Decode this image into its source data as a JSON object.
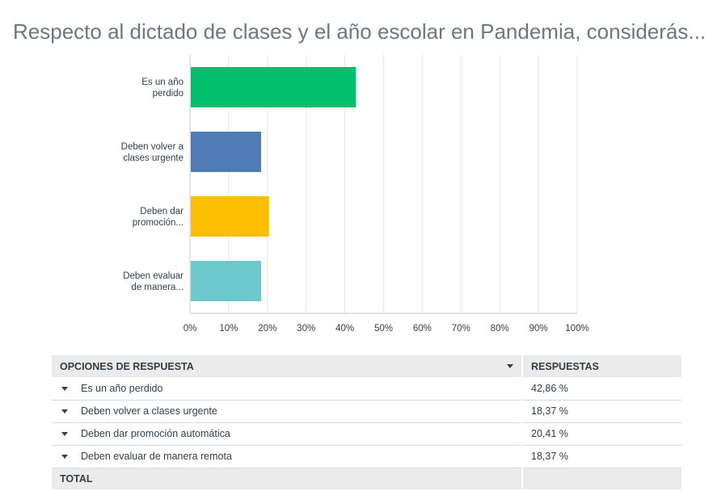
{
  "title": "Respecto al dictado de clases y el año escolar en Pandemia, considerás...",
  "chart_data": {
    "type": "bar",
    "orientation": "horizontal",
    "categories": [
      [
        "Es un año",
        "perdido"
      ],
      [
        "Deben volver a",
        "clases urgente"
      ],
      [
        "Deben dar",
        "promoción..."
      ],
      [
        "Deben evaluar",
        "de manera..."
      ]
    ],
    "values": [
      42.86,
      18.37,
      20.41,
      18.37
    ],
    "colors": [
      "#00bf6f",
      "#507cb6",
      "#f9be00",
      "#6bc8cd"
    ],
    "xlim": [
      0,
      100
    ],
    "xticks": [
      "0%",
      "10%",
      "20%",
      "30%",
      "40%",
      "50%",
      "60%",
      "70%",
      "80%",
      "90%",
      "100%"
    ],
    "grid": true,
    "xlabel": "",
    "ylabel": ""
  },
  "table": {
    "headers": {
      "options": "OPCIONES DE RESPUESTA",
      "responses": "RESPUESTAS"
    },
    "rows": [
      {
        "label": "Es un año perdido",
        "value": "42,86 %"
      },
      {
        "label": "Deben volver a clases urgente",
        "value": "18,37 %"
      },
      {
        "label": "Deben dar promoción automática",
        "value": "20,41 %"
      },
      {
        "label": "Deben evaluar de manera remota",
        "value": "18,37 %"
      }
    ],
    "total_label": "TOTAL"
  },
  "icons": {
    "sort": "chevron-down-icon",
    "expand": "caret-down-icon"
  }
}
